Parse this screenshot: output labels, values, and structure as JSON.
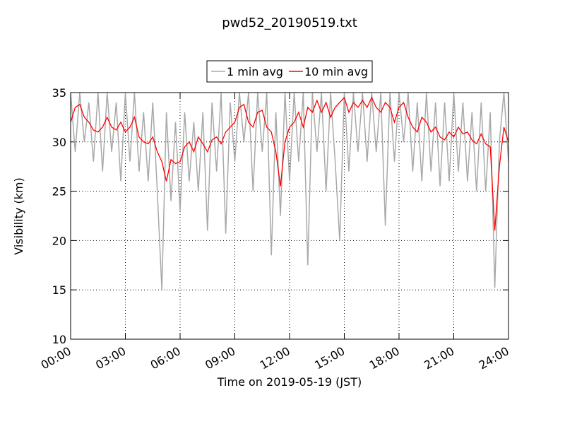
{
  "chart_data": {
    "type": "line",
    "title": "pwd52_20190519.txt",
    "x_label": "Time on 2019-05-19 (JST)",
    "y_label": "Visibility (km)",
    "x": [
      0,
      0.25,
      0.5,
      0.75,
      1,
      1.25,
      1.5,
      1.75,
      2,
      2.25,
      2.5,
      2.75,
      3,
      3.25,
      3.5,
      3.75,
      4,
      4.25,
      4.5,
      4.75,
      5,
      5.25,
      5.5,
      5.75,
      6,
      6.25,
      6.5,
      6.75,
      7,
      7.25,
      7.5,
      7.75,
      8,
      8.25,
      8.5,
      8.75,
      9,
      9.25,
      9.5,
      9.75,
      10,
      10.25,
      10.5,
      10.75,
      11,
      11.25,
      11.5,
      11.75,
      12,
      12.25,
      12.5,
      12.75,
      13,
      13.25,
      13.5,
      13.75,
      14,
      14.25,
      14.5,
      14.75,
      15,
      15.25,
      15.5,
      15.75,
      16,
      16.25,
      16.5,
      16.75,
      17,
      17.25,
      17.5,
      17.75,
      18,
      18.25,
      18.5,
      18.75,
      19,
      19.25,
      19.5,
      19.75,
      20,
      20.25,
      20.5,
      20.75,
      21,
      21.25,
      21.5,
      21.75,
      22,
      22.25,
      22.5,
      22.75,
      23,
      23.25,
      23.5,
      23.75,
      24
    ],
    "series": [
      {
        "name": "1 min avg",
        "color": "#a9a9a9",
        "values": [
          35,
          29,
          35,
          30,
          34,
          28,
          35,
          27,
          35,
          29,
          34,
          26,
          35,
          28,
          35,
          27,
          33,
          26,
          34,
          25,
          15,
          33,
          24,
          32,
          23,
          33,
          26,
          32,
          25,
          33,
          21,
          34,
          27,
          35,
          20.7,
          34,
          28,
          35,
          30,
          35,
          25,
          35,
          29,
          35,
          18.5,
          33,
          22.5,
          35,
          26,
          35,
          28,
          35,
          17.5,
          35,
          29,
          35,
          25,
          35,
          28,
          20,
          35,
          27,
          35,
          29,
          35,
          28,
          35,
          29,
          35,
          21.5,
          35,
          28,
          35,
          30,
          35,
          27,
          34,
          26,
          35,
          27,
          34,
          25.5,
          34,
          26,
          35,
          27,
          34,
          26,
          33,
          25,
          34,
          25,
          33,
          15.2,
          30,
          35,
          28
        ]
      },
      {
        "name": "10 min avg",
        "color": "#ff0000",
        "values": [
          32,
          33.5,
          33.8,
          32.5,
          32,
          31.2,
          31,
          31.5,
          32.5,
          31.5,
          31.2,
          32,
          31,
          31.5,
          32.5,
          30.5,
          30,
          29.8,
          30.5,
          29,
          28,
          26,
          28.2,
          27.8,
          28,
          29.5,
          30,
          29,
          30.5,
          29.8,
          29,
          30.2,
          30.5,
          29.8,
          31,
          31.5,
          32,
          33.5,
          33.8,
          32,
          31.5,
          33,
          33.2,
          31.5,
          31,
          29,
          25.5,
          30,
          31.5,
          32,
          33,
          31.5,
          33.5,
          33,
          34.2,
          33,
          34,
          32.5,
          33.5,
          34,
          34.5,
          33,
          34,
          33.5,
          34.2,
          33.5,
          34.5,
          33.5,
          33,
          34,
          33.5,
          32,
          33.5,
          34,
          32.5,
          31.5,
          31,
          32.5,
          32,
          31,
          31.5,
          30.5,
          30.2,
          31,
          30.5,
          31.5,
          30.8,
          31,
          30.2,
          29.8,
          30.8,
          29.8,
          29.5,
          21,
          27.5,
          31.5,
          30
        ]
      }
    ],
    "xlim": [
      0,
      24
    ],
    "ylim": [
      10,
      35
    ],
    "xticks": [
      {
        "value": 0,
        "label": "00:00"
      },
      {
        "value": 3,
        "label": "03:00"
      },
      {
        "value": 6,
        "label": "06:00"
      },
      {
        "value": 9,
        "label": "09:00"
      },
      {
        "value": 12,
        "label": "12:00"
      },
      {
        "value": 15,
        "label": "15:00"
      },
      {
        "value": 18,
        "label": "18:00"
      },
      {
        "value": 21,
        "label": "21:00"
      },
      {
        "value": 24,
        "label": "24:00"
      }
    ],
    "yticks": [
      10,
      15,
      20,
      25,
      30,
      35
    ],
    "grid": true,
    "legend": "top"
  }
}
